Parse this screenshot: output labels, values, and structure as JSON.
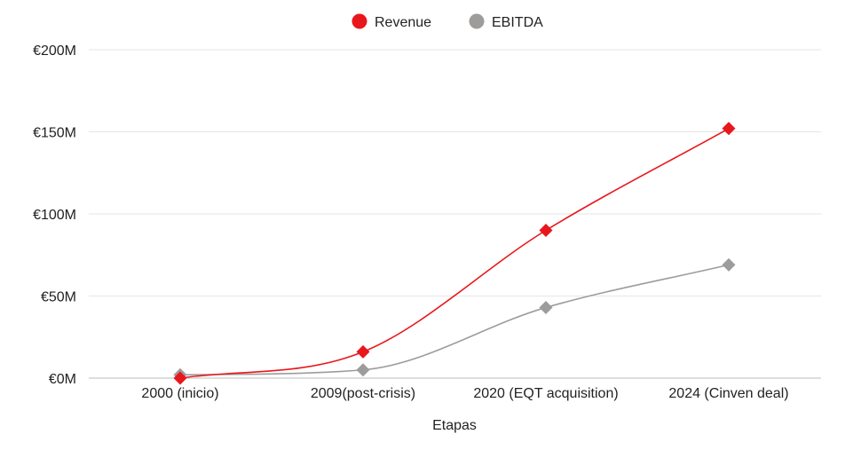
{
  "chart_data": {
    "type": "line",
    "categories": [
      "2000 (inicio)",
      "2009(post-crisis)",
      "2020 (EQT acquisition)",
      "2024 (Cinven deal)"
    ],
    "series": [
      {
        "name": "Revenue",
        "values": [
          0,
          16,
          90,
          152
        ],
        "color": "#e8171c"
      },
      {
        "name": "EBITDA",
        "values": [
          2,
          5,
          43,
          69
        ],
        "color": "#9e9b9b"
      }
    ],
    "xlabel": "Etapas",
    "ylabel": "",
    "ylim": [
      0,
      200
    ],
    "yticks": [
      0,
      50,
      100,
      150,
      200
    ],
    "ytick_labels": [
      "€0M",
      "€50M",
      "€100M",
      "€150M",
      "€200M"
    ],
    "legend_position": "top-center",
    "grid": true,
    "marker": "diamond",
    "smooth": true
  }
}
